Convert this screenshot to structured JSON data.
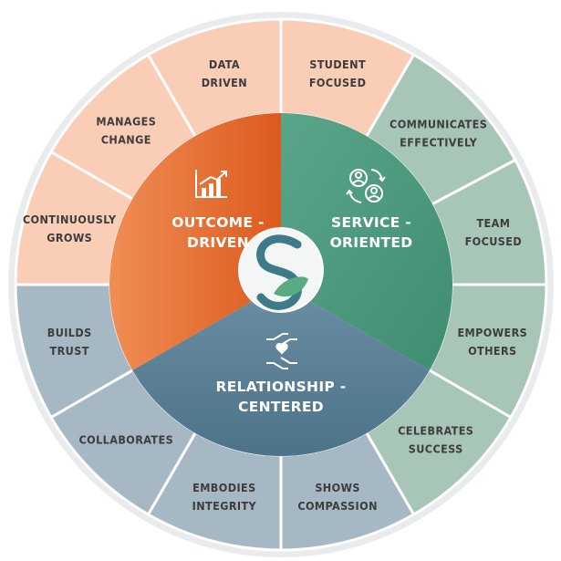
{
  "colors": {
    "ring_border": "#e9ebec",
    "peach": "#f9cdb6",
    "sage": "#a8c6b7",
    "slate": "#a7b8c5",
    "orange_core": "#e0672a",
    "green_core": "#4f9a81",
    "blue_core": "#577d93",
    "logo_teal": "#3f7a88"
  },
  "core": [
    {
      "key": "outcome",
      "lines": [
        "OUTCOME -",
        "DRIVEN"
      ],
      "icon": "chart-growth-icon"
    },
    {
      "key": "service",
      "lines": [
        "SERVICE -",
        "ORIENTED"
      ],
      "icon": "people-cycle-icon"
    },
    {
      "key": "relationship",
      "lines": [
        "RELATIONSHIP -",
        "CENTERED"
      ],
      "icon": "hands-heart-icon"
    }
  ],
  "segments": [
    {
      "group": "outcome",
      "lines": [
        "STUDENT",
        "FOCUSED"
      ]
    },
    {
      "group": "service",
      "lines": [
        "COMMUNICATES",
        "EFFECTIVELY"
      ]
    },
    {
      "group": "service",
      "lines": [
        "TEAM",
        "FOCUSED"
      ]
    },
    {
      "group": "service",
      "lines": [
        "EMPOWERS",
        "OTHERS"
      ]
    },
    {
      "group": "service",
      "lines": [
        "CELEBRATES",
        "SUCCESS"
      ]
    },
    {
      "group": "relationship",
      "lines": [
        "SHOWS",
        "COMPASSION"
      ]
    },
    {
      "group": "relationship",
      "lines": [
        "EMBODIES",
        "INTEGRITY"
      ]
    },
    {
      "group": "relationship",
      "lines": [
        "COLLABORATES"
      ]
    },
    {
      "group": "relationship",
      "lines": [
        "BUILDS",
        "TRUST"
      ]
    },
    {
      "group": "outcome",
      "lines": [
        "CONTINUOUSLY",
        "GROWS"
      ]
    },
    {
      "group": "outcome",
      "lines": [
        "MANAGES",
        "CHANGE"
      ]
    },
    {
      "group": "outcome",
      "lines": [
        "DATA",
        "DRIVEN"
      ]
    }
  ]
}
